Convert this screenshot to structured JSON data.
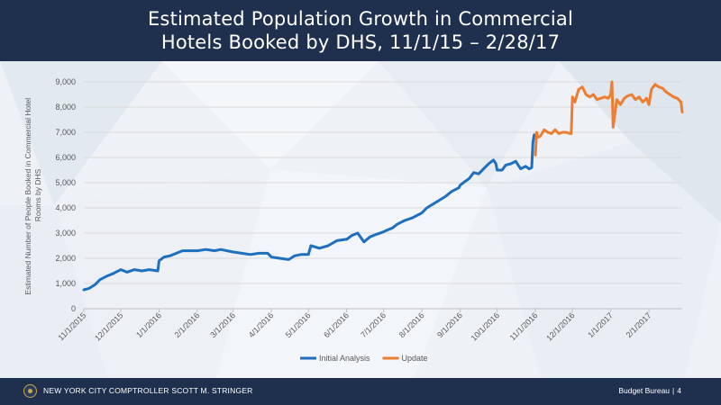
{
  "header": {
    "title_line1": "Estimated Population Growth in Commercial",
    "title_line2": "Hotels Booked by DHS, 11/1/15 – 2/28/17"
  },
  "footer": {
    "left": "NEW YORK CITY COMPTROLLER SCOTT M. STRINGER",
    "right_dept": "Budget Bureau",
    "right_sep": "|",
    "right_page": "4"
  },
  "colors": {
    "header_bg": "#1f2f4e",
    "initial": "#1f6fbf",
    "update": "#ed7d31"
  },
  "chart_data": {
    "type": "line",
    "title": "",
    "xlabel": "",
    "ylabel": "Estimated Number of People Booked in Commercial Hotel Rooms by DHS",
    "ylim": [
      0,
      9000
    ],
    "yticks": [
      0,
      1000,
      2000,
      3000,
      4000,
      5000,
      6000,
      7000,
      8000,
      9000
    ],
    "ytick_labels": [
      "0",
      "1,000",
      "2,000",
      "3,000",
      "4,000",
      "5,000",
      "6,000",
      "7,000",
      "8,000",
      "9,000"
    ],
    "xlim": [
      "2015-11-01",
      "2017-02-28"
    ],
    "xticks": [
      "2015-11-01",
      "2015-12-01",
      "2016-01-01",
      "2016-02-01",
      "2016-03-01",
      "2016-04-01",
      "2016-05-01",
      "2016-06-01",
      "2016-07-01",
      "2016-08-01",
      "2016-09-01",
      "2016-10-01",
      "2016-11-01",
      "2016-12-01",
      "2017-01-01",
      "2017-02-01"
    ],
    "xtick_labels": [
      "11/1/2015",
      "12/1/2015",
      "1/1/2016",
      "2/1/2016",
      "3/1/2016",
      "4/1/2016",
      "5/1/2016",
      "6/1/2016",
      "7/1/2016",
      "8/1/2016",
      "9/1/2016",
      "10/1/2016",
      "11/1/2016",
      "12/1/2016",
      "1/1/2017",
      "2/1/2017"
    ],
    "grid": "horizontal",
    "legend_position": "bottom",
    "series": [
      {
        "name": "Initial Analysis",
        "color": "#1f6fbf",
        "x": [
          "2015-11-01",
          "2015-11-05",
          "2015-11-10",
          "2015-11-14",
          "2015-11-20",
          "2015-11-25",
          "2015-12-01",
          "2015-12-06",
          "2015-12-12",
          "2015-12-18",
          "2015-12-24",
          "2015-12-31",
          "2016-01-01",
          "2016-01-05",
          "2016-01-10",
          "2016-01-15",
          "2016-01-20",
          "2016-01-25",
          "2016-02-01",
          "2016-02-08",
          "2016-02-15",
          "2016-02-20",
          "2016-02-25",
          "2016-03-01",
          "2016-03-08",
          "2016-03-15",
          "2016-03-22",
          "2016-03-29",
          "2016-04-01",
          "2016-04-08",
          "2016-04-15",
          "2016-04-20",
          "2016-04-25",
          "2016-05-01",
          "2016-05-03",
          "2016-05-10",
          "2016-05-17",
          "2016-05-24",
          "2016-05-31",
          "2016-06-01",
          "2016-06-05",
          "2016-06-10",
          "2016-06-15",
          "2016-06-20",
          "2016-06-25",
          "2016-07-01",
          "2016-07-03",
          "2016-07-08",
          "2016-07-12",
          "2016-07-18",
          "2016-07-24",
          "2016-07-30",
          "2016-08-01",
          "2016-08-05",
          "2016-08-10",
          "2016-08-15",
          "2016-08-20",
          "2016-08-25",
          "2016-08-31",
          "2016-09-01",
          "2016-09-05",
          "2016-09-08",
          "2016-09-12",
          "2016-09-16",
          "2016-09-20",
          "2016-09-24",
          "2016-09-28",
          "2016-09-30",
          "2016-10-01",
          "2016-10-05",
          "2016-10-08",
          "2016-10-12",
          "2016-10-16",
          "2016-10-20",
          "2016-10-24",
          "2016-10-27",
          "2016-10-29",
          "2016-10-30",
          "2016-10-31"
        ],
        "y": [
          750,
          800,
          950,
          1150,
          1300,
          1400,
          1550,
          1450,
          1550,
          1500,
          1550,
          1500,
          1900,
          2050,
          2100,
          2200,
          2300,
          2300,
          2300,
          2350,
          2300,
          2350,
          2300,
          2250,
          2200,
          2150,
          2200,
          2200,
          2050,
          2000,
          1950,
          2100,
          2150,
          2150,
          2500,
          2400,
          2500,
          2700,
          2750,
          2750,
          2900,
          3000,
          2650,
          2850,
          2950,
          3050,
          3100,
          3200,
          3350,
          3500,
          3600,
          3750,
          3800,
          4000,
          4150,
          4300,
          4450,
          4650,
          4800,
          4900,
          5050,
          5150,
          5400,
          5350,
          5550,
          5750,
          5900,
          5750,
          5500,
          5500,
          5700,
          5750,
          5850,
          5550,
          5650,
          5550,
          5600,
          6600,
          6900
        ]
      },
      {
        "name": "Update",
        "color": "#ed7d31",
        "x": [
          "2016-11-01",
          "2016-11-02",
          "2016-11-03",
          "2016-11-05",
          "2016-11-08",
          "2016-11-11",
          "2016-11-14",
          "2016-11-17",
          "2016-11-20",
          "2016-11-23",
          "2016-11-26",
          "2016-11-29",
          "2016-11-30",
          "2016-12-01",
          "2016-12-03",
          "2016-12-06",
          "2016-12-09",
          "2016-12-12",
          "2016-12-15",
          "2016-12-18",
          "2016-12-21",
          "2016-12-24",
          "2016-12-27",
          "2016-12-30",
          "2017-01-01",
          "2017-01-02",
          "2017-01-03",
          "2017-01-06",
          "2017-01-09",
          "2017-01-12",
          "2017-01-15",
          "2017-01-18",
          "2017-01-21",
          "2017-01-24",
          "2017-01-27",
          "2017-01-30",
          "2017-02-01",
          "2017-02-03",
          "2017-02-06",
          "2017-02-09",
          "2017-02-12",
          "2017-02-15",
          "2017-02-18",
          "2017-02-21",
          "2017-02-24",
          "2017-02-27",
          "2017-02-28"
        ],
        "y": [
          6100,
          7000,
          6800,
          6850,
          7100,
          7000,
          6950,
          7100,
          6950,
          7000,
          7000,
          6950,
          6950,
          8400,
          8200,
          8700,
          8800,
          8500,
          8400,
          8500,
          8300,
          8350,
          8400,
          8350,
          8500,
          9000,
          7200,
          8300,
          8100,
          8350,
          8450,
          8500,
          8300,
          8400,
          8200,
          8350,
          8100,
          8700,
          8900,
          8800,
          8750,
          8600,
          8500,
          8400,
          8350,
          8200,
          7800
        ]
      }
    ]
  }
}
